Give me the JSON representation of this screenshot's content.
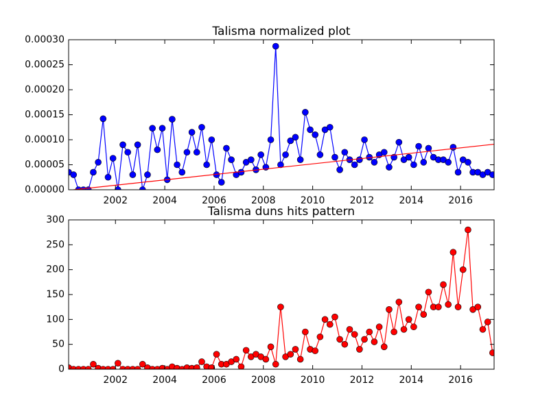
{
  "chart_data": [
    {
      "type": "line",
      "title": "Talisma normalized plot",
      "color": "#0000ff",
      "x": [
        2000.1,
        2000.3,
        2000.5,
        2000.7,
        2000.9,
        2001.1,
        2001.3,
        2001.5,
        2001.7,
        2001.9,
        2002.1,
        2002.3,
        2002.5,
        2002.7,
        2002.9,
        2003.1,
        2003.3,
        2003.5,
        2003.7,
        2003.9,
        2004.1,
        2004.3,
        2004.5,
        2004.7,
        2004.9,
        2005.1,
        2005.3,
        2005.5,
        2005.7,
        2005.9,
        2006.1,
        2006.3,
        2006.5,
        2006.7,
        2006.9,
        2007.1,
        2007.3,
        2007.5,
        2007.7,
        2007.9,
        2008.1,
        2008.3,
        2008.5,
        2008.7,
        2008.9,
        2009.1,
        2009.3,
        2009.5,
        2009.7,
        2009.9,
        2010.1,
        2010.3,
        2010.5,
        2010.7,
        2010.9,
        2011.1,
        2011.3,
        2011.5,
        2011.7,
        2011.9,
        2012.1,
        2012.3,
        2012.5,
        2012.7,
        2012.9,
        2013.1,
        2013.3,
        2013.5,
        2013.7,
        2013.9,
        2014.1,
        2014.3,
        2014.5,
        2014.7,
        2014.9,
        2015.1,
        2015.3,
        2015.5,
        2015.7,
        2015.9,
        2016.1,
        2016.3,
        2016.5,
        2016.7,
        2016.9,
        2017.1,
        2017.3
      ],
      "values": [
        3.5e-05,
        3e-05,
        0,
        0,
        0,
        3.5e-05,
        5.5e-05,
        0.000142,
        2.5e-05,
        6.3e-05,
        0,
        9e-05,
        7.5e-05,
        3e-05,
        9e-05,
        0,
        3e-05,
        0.000123,
        8e-05,
        0.000123,
        2e-05,
        0.000141,
        5e-05,
        3.5e-05,
        7.5e-05,
        0.000115,
        7.5e-05,
        0.000125,
        5e-05,
        0.0001,
        3e-05,
        1.5e-05,
        8.3e-05,
        6e-05,
        3e-05,
        3.5e-05,
        5.5e-05,
        6e-05,
        4e-05,
        7e-05,
        4.5e-05,
        0.0001,
        0.000287,
        5e-05,
        7e-05,
        9.8e-05,
        0.000105,
        6e-05,
        0.000155,
        0.00012,
        0.00011,
        7e-05,
        0.00012,
        0.000125,
        6.5e-05,
        4e-05,
        7.5e-05,
        6e-05,
        5e-05,
        6e-05,
        0.0001,
        6.5e-05,
        5.5e-05,
        7e-05,
        7.5e-05,
        4.5e-05,
        6.5e-05,
        9.5e-05,
        6e-05,
        6.5e-05,
        5e-05,
        8.7e-05,
        5.5e-05,
        8.3e-05,
        6.5e-05,
        6e-05,
        6e-05,
        5.5e-05,
        8.5e-05,
        3.5e-05,
        6e-05,
        5.5e-05,
        3.5e-05,
        3.5e-05,
        3e-05,
        3.5e-05,
        3e-05
      ],
      "trend": {
        "x": [
          2000.3,
          2017.36
        ],
        "values": [
          0,
          9.1e-05
        ],
        "color": "#ff0000"
      },
      "xlim": [
        2000.1,
        2017.36
      ],
      "ylim": [
        0,
        0.0003
      ],
      "xticks": [
        2002,
        2004,
        2006,
        2008,
        2010,
        2012,
        2014,
        2016
      ],
      "yticks": [
        {
          "value": 0,
          "label": "0.00000"
        },
        {
          "value": 5e-05,
          "label": "0.00005"
        },
        {
          "value": 0.0001,
          "label": "0.00010"
        },
        {
          "value": 0.00015,
          "label": "0.00015"
        },
        {
          "value": 0.0002,
          "label": "0.00020"
        },
        {
          "value": 0.00025,
          "label": "0.00025"
        },
        {
          "value": 0.0003,
          "label": "0.00030"
        }
      ]
    },
    {
      "type": "line",
      "title": "Talisma duns hits pattern",
      "color": "#ff0000",
      "x": [
        2000.1,
        2000.3,
        2000.5,
        2000.7,
        2000.9,
        2001.1,
        2001.3,
        2001.5,
        2001.7,
        2001.9,
        2002.1,
        2002.3,
        2002.5,
        2002.7,
        2002.9,
        2003.1,
        2003.3,
        2003.5,
        2003.7,
        2003.9,
        2004.1,
        2004.3,
        2004.5,
        2004.7,
        2004.9,
        2005.1,
        2005.3,
        2005.5,
        2005.7,
        2005.9,
        2006.1,
        2006.3,
        2006.5,
        2006.7,
        2006.9,
        2007.1,
        2007.3,
        2007.5,
        2007.7,
        2007.9,
        2008.1,
        2008.3,
        2008.5,
        2008.7,
        2008.9,
        2009.1,
        2009.3,
        2009.5,
        2009.7,
        2009.9,
        2010.1,
        2010.3,
        2010.5,
        2010.7,
        2010.9,
        2011.1,
        2011.3,
        2011.5,
        2011.7,
        2011.9,
        2012.1,
        2012.3,
        2012.5,
        2012.7,
        2012.9,
        2013.1,
        2013.3,
        2013.5,
        2013.7,
        2013.9,
        2014.1,
        2014.3,
        2014.5,
        2014.7,
        2014.9,
        2015.1,
        2015.3,
        2015.5,
        2015.7,
        2015.9,
        2016.1,
        2016.3,
        2016.5,
        2016.7,
        2016.9,
        2017.1,
        2017.3
      ],
      "values": [
        3,
        0,
        0,
        0,
        0,
        10,
        2,
        0,
        0,
        0,
        12,
        0,
        0,
        0,
        0,
        10,
        3,
        0,
        0,
        2,
        0,
        5,
        2,
        0,
        3,
        2,
        3,
        15,
        5,
        3,
        30,
        10,
        10,
        15,
        20,
        5,
        38,
        25,
        30,
        25,
        20,
        45,
        10,
        125,
        25,
        30,
        40,
        20,
        75,
        40,
        37,
        65,
        100,
        90,
        105,
        60,
        50,
        80,
        70,
        40,
        60,
        75,
        55,
        85,
        45,
        120,
        75,
        135,
        80,
        100,
        85,
        125,
        110,
        155,
        125,
        125,
        170,
        130,
        235,
        125,
        200,
        280,
        120,
        125,
        80,
        95,
        33
      ],
      "xlim": [
        2000.1,
        2017.36
      ],
      "ylim": [
        0,
        300
      ],
      "xticks": [
        2002,
        2004,
        2006,
        2008,
        2010,
        2012,
        2014,
        2016
      ],
      "yticks": [
        0,
        50,
        100,
        150,
        200,
        250,
        300
      ]
    }
  ]
}
